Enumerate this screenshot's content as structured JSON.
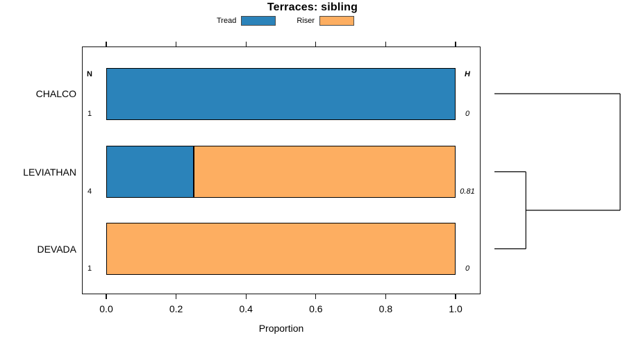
{
  "columns": {
    "n": "N",
    "h": "H"
  },
  "chart_data": {
    "type": "bar",
    "orientation": "horizontal",
    "stacked": true,
    "title": "Terraces: sibling",
    "xlabel": "Proportion",
    "xlim": [
      0,
      1
    ],
    "x_ticks": [
      "0.0",
      "0.2",
      "0.4",
      "0.6",
      "0.8",
      "1.0"
    ],
    "grid": false,
    "legend_position": "top",
    "categories": [
      "CHALCO",
      "LEVIATHAN",
      "DEVADA"
    ],
    "series": [
      {
        "name": "Tread",
        "color": "#2B83BA",
        "values": [
          1.0,
          0.25,
          0
        ]
      },
      {
        "name": "Riser",
        "color": "#FDAE61",
        "values": [
          0,
          0.75,
          1.0
        ]
      }
    ],
    "n_values": [
      "1",
      "4",
      "1"
    ],
    "h_values": [
      "0",
      "0.81",
      "0"
    ],
    "dendrogram": {
      "leaves": [
        "CHALCO",
        "LEVIATHAN",
        "DEVADA"
      ],
      "merges": [
        {
          "children": [
            "LEVIATHAN",
            "DEVADA"
          ],
          "height": 0.25
        },
        {
          "children": [
            "merge0",
            "CHALCO"
          ],
          "height": 1.0
        }
      ]
    }
  }
}
